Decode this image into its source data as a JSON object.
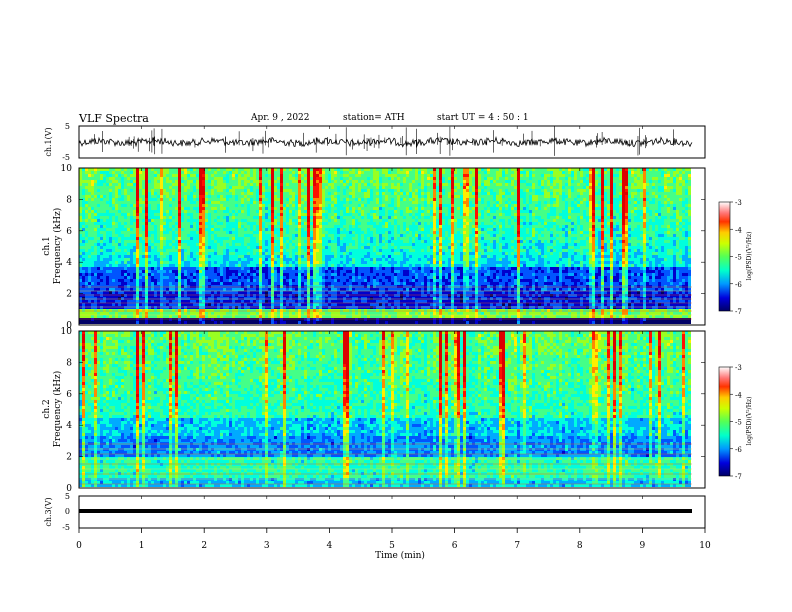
{
  "header": {
    "title": "VLF  Spectra",
    "date": "Apr. 9  , 2022",
    "station": "station= ATH",
    "start": "start  UT  =   4  : 50 : 1"
  },
  "chart_data": [
    {
      "type": "line",
      "panel": "ch1-waveform",
      "ylabel": "ch.1(V)",
      "ylim": [
        -5,
        5
      ],
      "yticks": [
        "5",
        "-5"
      ],
      "xlim": [
        0,
        10
      ],
      "series": [
        {
          "values_description": null,
          "color": "#000000"
        }
      ]
    },
    {
      "type": "heatmap",
      "panel": "ch1-spectrogram",
      "ylabel": [
        "ch.1",
        "Frequency  (kHz)"
      ],
      "ylim": [
        0,
        10
      ],
      "yticks": [
        "0",
        "2",
        "4",
        "6",
        "8",
        "10"
      ],
      "xlim": [
        0,
        9.8
      ],
      "colorbar": {
        "label": "log(PSD)(V²/Hz)",
        "range": [
          -7,
          -3
        ],
        "ticks": [
          "-3",
          "-4",
          "-5",
          "-6",
          "-7"
        ]
      }
    },
    {
      "type": "heatmap",
      "panel": "ch2-spectrogram",
      "ylabel": [
        "ch.2",
        "Frequency  (kHz)"
      ],
      "ylim": [
        0,
        10
      ],
      "yticks": [
        "0",
        "2",
        "4",
        "6",
        "8",
        "10"
      ],
      "xlim": [
        0,
        9.8
      ],
      "colorbar": {
        "label": "log(PSD)(V²/Hz)",
        "range": [
          -7,
          -3
        ],
        "ticks": [
          "-3",
          "-4",
          "-5",
          "-6",
          "-7"
        ]
      }
    },
    {
      "type": "line",
      "panel": "ch3-waveform",
      "ylabel": "ch.3(V)",
      "ylim": [
        -5,
        5
      ],
      "yticks": [
        "5",
        "0",
        "-5"
      ],
      "xlim": [
        0,
        10
      ],
      "series": [
        {
          "constant_value": -0.2,
          "color": "#000000"
        }
      ]
    }
  ],
  "x_axis": {
    "label": "Time  (min)",
    "ticks": [
      "0",
      "1",
      "2",
      "3",
      "4",
      "5",
      "6",
      "7",
      "8",
      "9",
      "10"
    ]
  },
  "colormap": [
    "#000066",
    "#0000cc",
    "#0055ff",
    "#00aaff",
    "#00ffdd",
    "#44ff88",
    "#99ff22",
    "#ffee00",
    "#ff8800",
    "#ff1100",
    "#dd0000",
    "#ffffff"
  ]
}
